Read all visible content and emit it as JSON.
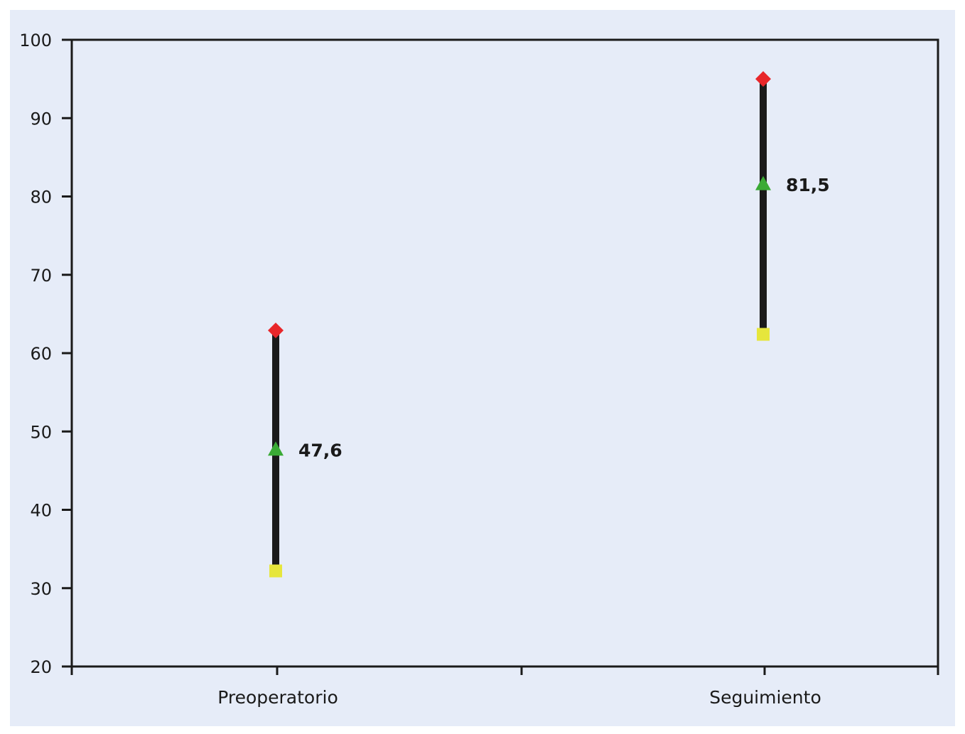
{
  "chart_data": {
    "type": "high-low",
    "title": "",
    "xlabel": "",
    "ylabel": "",
    "ylim": [
      20,
      100
    ],
    "yticks": [
      20,
      30,
      40,
      50,
      60,
      70,
      80,
      90,
      100
    ],
    "grid": false,
    "legend": "none",
    "categories": [
      "Preoperatorio",
      "Seguimiento"
    ],
    "series": [
      {
        "role": "high",
        "marker": "diamond",
        "color": "#e8262a",
        "values": [
          62.9,
          95.0
        ]
      },
      {
        "role": "mean",
        "marker": "triangle",
        "color": "#3aaa35",
        "values": [
          47.6,
          81.5
        ]
      },
      {
        "role": "low",
        "marker": "square",
        "color": "#e6e63c",
        "values": [
          32.2,
          62.4
        ]
      }
    ],
    "data_labels": [
      "47,6",
      "81,5"
    ],
    "colors": {
      "background": "#e6ecf8",
      "axis": "#1a1a1a",
      "range_line": "#1a1a1a"
    }
  }
}
